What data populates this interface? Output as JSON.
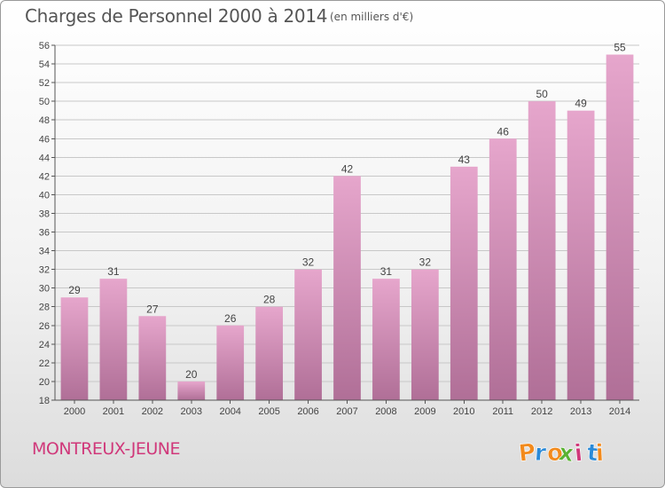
{
  "header": {
    "title": "Charges de Personnel 2000 à 2014",
    "unit_note": "(en milliers d'€)"
  },
  "footer": {
    "place_name": "MONTREUX-JEUNE",
    "logo_text": "Proxiti"
  },
  "colors": {
    "bar_light": "#e6a6cc",
    "bar_dark": "#b06f97",
    "place_text": "#d0387a",
    "logo_letters": [
      "#f28a1c",
      "#2a8ad8",
      "#f28a1c",
      "#5ab233",
      "#d0387a",
      "#2a8ad8",
      "#f28a1c"
    ]
  },
  "chart_data": {
    "type": "bar",
    "categories": [
      "2000",
      "2001",
      "2002",
      "2003",
      "2004",
      "2005",
      "2006",
      "2007",
      "2008",
      "2009",
      "2010",
      "2011",
      "2012",
      "2013",
      "2014"
    ],
    "values": [
      29,
      31,
      27,
      20,
      26,
      28,
      32,
      42,
      31,
      32,
      43,
      46,
      50,
      49,
      55
    ],
    "title": "Charges de Personnel 2000 à 2014",
    "subtitle": "(en milliers d'€)",
    "ylim": [
      18,
      56
    ],
    "yticks": [
      18,
      20,
      22,
      24,
      26,
      28,
      30,
      32,
      34,
      36,
      38,
      40,
      42,
      44,
      46,
      48,
      50,
      52,
      54,
      56
    ],
    "grid": true,
    "data_labels": true
  }
}
